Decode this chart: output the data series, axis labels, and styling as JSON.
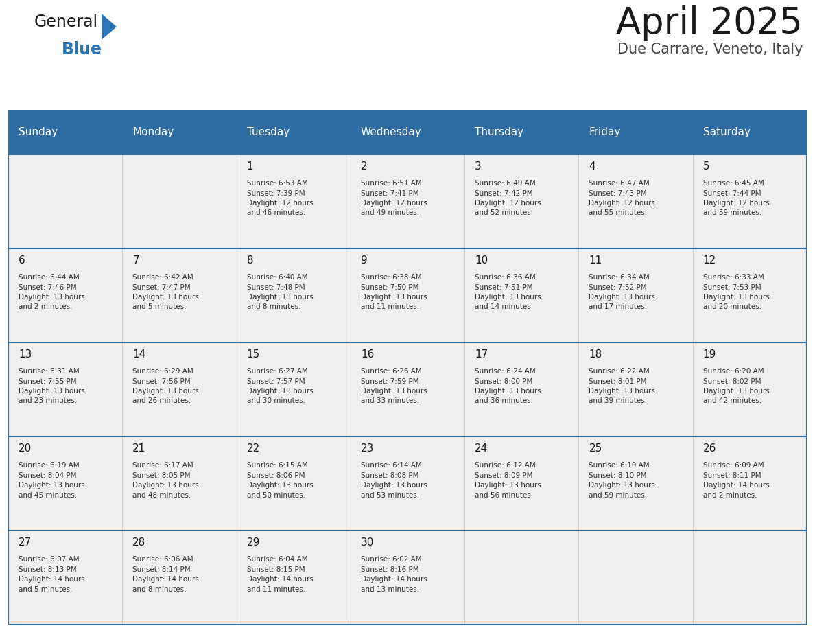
{
  "title": "April 2025",
  "subtitle": "Due Carrare, Veneto, Italy",
  "header_bg": "#2e6da4",
  "header_text_color": "#ffffff",
  "cell_bg": "#efefef",
  "border_color": "#2e6da4",
  "text_color": "#333333",
  "day_number_color": "#1a1a1a",
  "day_headers": [
    "Sunday",
    "Monday",
    "Tuesday",
    "Wednesday",
    "Thursday",
    "Friday",
    "Saturday"
  ],
  "weeks": [
    [
      {
        "day": "",
        "info": ""
      },
      {
        "day": "",
        "info": ""
      },
      {
        "day": "1",
        "info": "Sunrise: 6:53 AM\nSunset: 7:39 PM\nDaylight: 12 hours\nand 46 minutes."
      },
      {
        "day": "2",
        "info": "Sunrise: 6:51 AM\nSunset: 7:41 PM\nDaylight: 12 hours\nand 49 minutes."
      },
      {
        "day": "3",
        "info": "Sunrise: 6:49 AM\nSunset: 7:42 PM\nDaylight: 12 hours\nand 52 minutes."
      },
      {
        "day": "4",
        "info": "Sunrise: 6:47 AM\nSunset: 7:43 PM\nDaylight: 12 hours\nand 55 minutes."
      },
      {
        "day": "5",
        "info": "Sunrise: 6:45 AM\nSunset: 7:44 PM\nDaylight: 12 hours\nand 59 minutes."
      }
    ],
    [
      {
        "day": "6",
        "info": "Sunrise: 6:44 AM\nSunset: 7:46 PM\nDaylight: 13 hours\nand 2 minutes."
      },
      {
        "day": "7",
        "info": "Sunrise: 6:42 AM\nSunset: 7:47 PM\nDaylight: 13 hours\nand 5 minutes."
      },
      {
        "day": "8",
        "info": "Sunrise: 6:40 AM\nSunset: 7:48 PM\nDaylight: 13 hours\nand 8 minutes."
      },
      {
        "day": "9",
        "info": "Sunrise: 6:38 AM\nSunset: 7:50 PM\nDaylight: 13 hours\nand 11 minutes."
      },
      {
        "day": "10",
        "info": "Sunrise: 6:36 AM\nSunset: 7:51 PM\nDaylight: 13 hours\nand 14 minutes."
      },
      {
        "day": "11",
        "info": "Sunrise: 6:34 AM\nSunset: 7:52 PM\nDaylight: 13 hours\nand 17 minutes."
      },
      {
        "day": "12",
        "info": "Sunrise: 6:33 AM\nSunset: 7:53 PM\nDaylight: 13 hours\nand 20 minutes."
      }
    ],
    [
      {
        "day": "13",
        "info": "Sunrise: 6:31 AM\nSunset: 7:55 PM\nDaylight: 13 hours\nand 23 minutes."
      },
      {
        "day": "14",
        "info": "Sunrise: 6:29 AM\nSunset: 7:56 PM\nDaylight: 13 hours\nand 26 minutes."
      },
      {
        "day": "15",
        "info": "Sunrise: 6:27 AM\nSunset: 7:57 PM\nDaylight: 13 hours\nand 30 minutes."
      },
      {
        "day": "16",
        "info": "Sunrise: 6:26 AM\nSunset: 7:59 PM\nDaylight: 13 hours\nand 33 minutes."
      },
      {
        "day": "17",
        "info": "Sunrise: 6:24 AM\nSunset: 8:00 PM\nDaylight: 13 hours\nand 36 minutes."
      },
      {
        "day": "18",
        "info": "Sunrise: 6:22 AM\nSunset: 8:01 PM\nDaylight: 13 hours\nand 39 minutes."
      },
      {
        "day": "19",
        "info": "Sunrise: 6:20 AM\nSunset: 8:02 PM\nDaylight: 13 hours\nand 42 minutes."
      }
    ],
    [
      {
        "day": "20",
        "info": "Sunrise: 6:19 AM\nSunset: 8:04 PM\nDaylight: 13 hours\nand 45 minutes."
      },
      {
        "day": "21",
        "info": "Sunrise: 6:17 AM\nSunset: 8:05 PM\nDaylight: 13 hours\nand 48 minutes."
      },
      {
        "day": "22",
        "info": "Sunrise: 6:15 AM\nSunset: 8:06 PM\nDaylight: 13 hours\nand 50 minutes."
      },
      {
        "day": "23",
        "info": "Sunrise: 6:14 AM\nSunset: 8:08 PM\nDaylight: 13 hours\nand 53 minutes."
      },
      {
        "day": "24",
        "info": "Sunrise: 6:12 AM\nSunset: 8:09 PM\nDaylight: 13 hours\nand 56 minutes."
      },
      {
        "day": "25",
        "info": "Sunrise: 6:10 AM\nSunset: 8:10 PM\nDaylight: 13 hours\nand 59 minutes."
      },
      {
        "day": "26",
        "info": "Sunrise: 6:09 AM\nSunset: 8:11 PM\nDaylight: 14 hours\nand 2 minutes."
      }
    ],
    [
      {
        "day": "27",
        "info": "Sunrise: 6:07 AM\nSunset: 8:13 PM\nDaylight: 14 hours\nand 5 minutes."
      },
      {
        "day": "28",
        "info": "Sunrise: 6:06 AM\nSunset: 8:14 PM\nDaylight: 14 hours\nand 8 minutes."
      },
      {
        "day": "29",
        "info": "Sunrise: 6:04 AM\nSunset: 8:15 PM\nDaylight: 14 hours\nand 11 minutes."
      },
      {
        "day": "30",
        "info": "Sunrise: 6:02 AM\nSunset: 8:16 PM\nDaylight: 14 hours\nand 13 minutes."
      },
      {
        "day": "",
        "info": ""
      },
      {
        "day": "",
        "info": ""
      },
      {
        "day": "",
        "info": ""
      }
    ]
  ],
  "logo_text_general": "General",
  "logo_text_blue": "Blue",
  "logo_color_general": "#1a1a1a",
  "logo_color_blue": "#2e75b6",
  "logo_triangle_color": "#2e75b6",
  "title_fontsize": 38,
  "subtitle_fontsize": 15,
  "header_fontsize": 11,
  "day_num_fontsize": 11,
  "info_fontsize": 7.5
}
